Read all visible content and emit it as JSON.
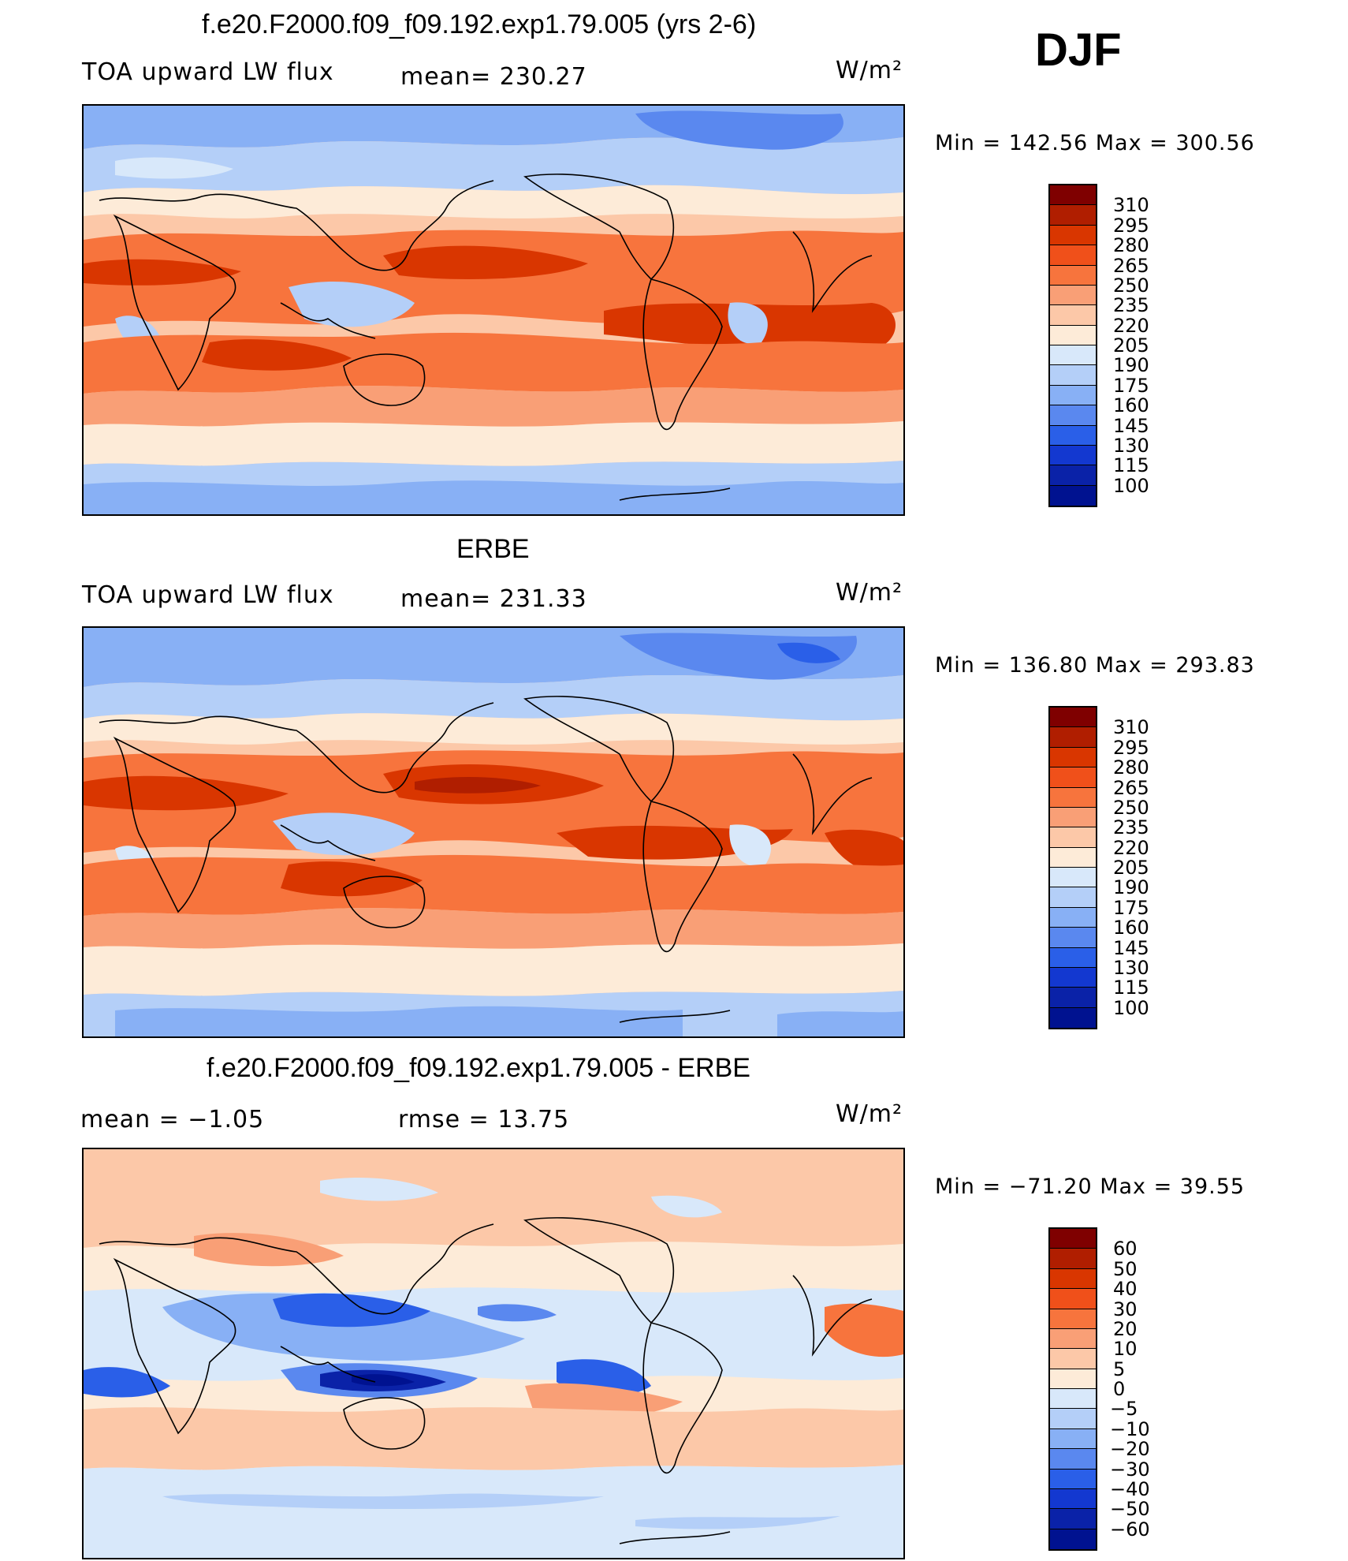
{
  "season": "DJF",
  "panels": [
    {
      "id": "model",
      "title": "f.e20.F2000.f09_f09.192.exp1.79.005 (yrs 2-6)",
      "left_label": "TOA upward LW flux",
      "center_label": "mean=  230.27",
      "units": "W/m²",
      "minmax": "Min  =  142.56  Max  =  300.56",
      "colorbar": {
        "labels": [
          "310",
          "295",
          "280",
          "265",
          "250",
          "235",
          "220",
          "205",
          "190",
          "175",
          "160",
          "145",
          "130",
          "115",
          "100"
        ],
        "colors": [
          "#7f0000",
          "#b01e00",
          "#d93600",
          "#f0501a",
          "#f7743d",
          "#f99f76",
          "#fcc8a8",
          "#fdebd8",
          "#d8e8fa",
          "#b4cff8",
          "#88b0f5",
          "#5a88ef",
          "#2a5fe8",
          "#1338d0",
          "#0a22a8",
          "#001290"
        ]
      },
      "chart_data": {
        "type": "heatmap",
        "title": "f.e20.F2000.f09_f09.192.exp1.79.005 (yrs 2-6)",
        "variable": "TOA upward LW flux",
        "units": "W/m²",
        "mean": 230.27,
        "min": 142.56,
        "max": 300.56,
        "levels": [
          100,
          115,
          130,
          145,
          160,
          175,
          190,
          205,
          220,
          235,
          250,
          265,
          280,
          295,
          310
        ],
        "lat_profile": [
          {
            "lat": 90,
            "value": 180
          },
          {
            "lat": 60,
            "value": 195
          },
          {
            "lat": 40,
            "value": 215
          },
          {
            "lat": 20,
            "value": 265
          },
          {
            "lat": 0,
            "value": 240
          },
          {
            "lat": -20,
            "value": 270
          },
          {
            "lat": -40,
            "value": 240
          },
          {
            "lat": -60,
            "value": 210
          },
          {
            "lat": -90,
            "value": 160
          }
        ]
      }
    },
    {
      "id": "obs",
      "title": "ERBE",
      "left_label": "TOA upward LW flux",
      "center_label": "mean=  231.33",
      "units": "W/m²",
      "minmax": "Min  =  136.80  Max  =  293.83",
      "colorbar": {
        "labels": [
          "310",
          "295",
          "280",
          "265",
          "250",
          "235",
          "220",
          "205",
          "190",
          "175",
          "160",
          "145",
          "130",
          "115",
          "100"
        ],
        "colors": [
          "#7f0000",
          "#b01e00",
          "#d93600",
          "#f0501a",
          "#f7743d",
          "#f99f76",
          "#fcc8a8",
          "#fdebd8",
          "#d8e8fa",
          "#b4cff8",
          "#88b0f5",
          "#5a88ef",
          "#2a5fe8",
          "#1338d0",
          "#0a22a8",
          "#001290"
        ]
      },
      "chart_data": {
        "type": "heatmap",
        "title": "ERBE",
        "variable": "TOA upward LW flux",
        "units": "W/m²",
        "mean": 231.33,
        "min": 136.8,
        "max": 293.83,
        "levels": [
          100,
          115,
          130,
          145,
          160,
          175,
          190,
          205,
          220,
          235,
          250,
          265,
          280,
          295,
          310
        ],
        "lat_profile": [
          {
            "lat": 90,
            "value": 170
          },
          {
            "lat": 60,
            "value": 190
          },
          {
            "lat": 40,
            "value": 215
          },
          {
            "lat": 20,
            "value": 270
          },
          {
            "lat": 0,
            "value": 245
          },
          {
            "lat": -20,
            "value": 275
          },
          {
            "lat": -40,
            "value": 235
          },
          {
            "lat": -60,
            "value": 210
          },
          {
            "lat": -90,
            "value": 165
          }
        ]
      }
    },
    {
      "id": "diff",
      "title": "f.e20.F2000.f09_f09.192.exp1.79.005 - ERBE",
      "left_label": "mean  =    −1.05",
      "center_label": "rmse  =    13.75",
      "units": "W/m²",
      "minmax": "Min  =  −71.20  Max  =    39.55",
      "colorbar": {
        "labels": [
          "60",
          "50",
          "40",
          "30",
          "20",
          "10",
          "5",
          "0",
          "−5",
          "−10",
          "−20",
          "−30",
          "−40",
          "−50",
          "−60"
        ],
        "colors": [
          "#7f0000",
          "#b01e00",
          "#d93600",
          "#f0501a",
          "#f7743d",
          "#f99f76",
          "#fcc8a8",
          "#fdebd8",
          "#d8e8fa",
          "#b4cff8",
          "#88b0f5",
          "#5a88ef",
          "#2a5fe8",
          "#1338d0",
          "#0a22a8",
          "#001290"
        ]
      },
      "chart_data": {
        "type": "heatmap",
        "title": "f.e20.F2000.f09_f09.192.exp1.79.005 - ERBE",
        "variable": "TOA upward LW flux difference",
        "units": "W/m²",
        "mean": -1.05,
        "rmse": 13.75,
        "min": -71.2,
        "max": 39.55,
        "levels": [
          -60,
          -50,
          -40,
          -30,
          -20,
          -10,
          -5,
          0,
          5,
          10,
          20,
          30,
          40,
          50,
          60
        ],
        "lat_profile": [
          {
            "lat": 90,
            "value": 2
          },
          {
            "lat": 60,
            "value": 5
          },
          {
            "lat": 40,
            "value": 3
          },
          {
            "lat": 20,
            "value": 4
          },
          {
            "lat": 0,
            "value": -12
          },
          {
            "lat": -20,
            "value": -8
          },
          {
            "lat": -40,
            "value": 3
          },
          {
            "lat": -60,
            "value": -2
          },
          {
            "lat": -90,
            "value": -4
          }
        ]
      }
    }
  ]
}
